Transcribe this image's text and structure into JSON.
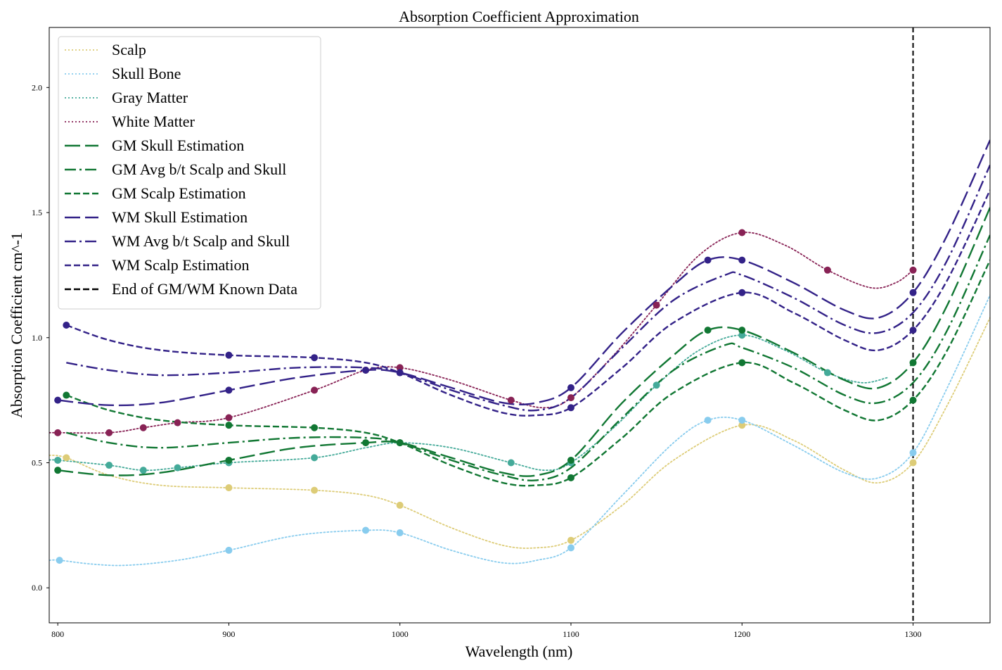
{
  "chart_data": {
    "type": "line",
    "title": "Absorption Coefficient Approximation",
    "xlabel": "Wavelength (nm)",
    "ylabel": "Absorption Coefficient cm^-1",
    "xlim": [
      795,
      1345
    ],
    "ylim": [
      -0.14,
      2.24
    ],
    "x_ticks": [
      800,
      900,
      1000,
      1100,
      1200,
      1300
    ],
    "y_ticks": [
      0.0,
      0.5,
      1.0,
      1.5,
      2.0
    ],
    "x_tick_labels": [
      "800",
      "900",
      "1000",
      "1100",
      "1200",
      "1300"
    ],
    "y_tick_labels": [
      "0.0",
      "0.5",
      "1.0",
      "1.5",
      "2.0"
    ],
    "grid": false,
    "legend_position": "top-left",
    "vline": {
      "x": 1300,
      "label": "End of GM/WM Known Data",
      "color": "#000000"
    },
    "series": [
      {
        "name": "Scalp",
        "color": "#ddcc77",
        "style": "dotted",
        "points": [
          [
            805,
            0.52
          ],
          [
            900,
            0.4
          ],
          [
            950,
            0.39
          ],
          [
            1000,
            0.33
          ],
          [
            1100,
            0.19
          ],
          [
            1200,
            0.65
          ],
          [
            1300,
            0.5
          ]
        ],
        "curve": [
          [
            795,
            0.53
          ],
          [
            805,
            0.52
          ],
          [
            830,
            0.45
          ],
          [
            860,
            0.41
          ],
          [
            900,
            0.4
          ],
          [
            950,
            0.39
          ],
          [
            980,
            0.37
          ],
          [
            1000,
            0.33
          ],
          [
            1030,
            0.24
          ],
          [
            1060,
            0.17
          ],
          [
            1080,
            0.16
          ],
          [
            1100,
            0.19
          ],
          [
            1130,
            0.33
          ],
          [
            1160,
            0.51
          ],
          [
            1200,
            0.65
          ],
          [
            1230,
            0.59
          ],
          [
            1260,
            0.47
          ],
          [
            1280,
            0.42
          ],
          [
            1300,
            0.5
          ],
          [
            1320,
            0.73
          ],
          [
            1345,
            1.08
          ]
        ]
      },
      {
        "name": "Skull Bone",
        "color": "#88ccee",
        "style": "dotted",
        "points": [
          [
            801,
            0.11
          ],
          [
            900,
            0.15
          ],
          [
            980,
            0.23
          ],
          [
            1000,
            0.22
          ],
          [
            1100,
            0.16
          ],
          [
            1180,
            0.67
          ],
          [
            1200,
            0.67
          ],
          [
            1300,
            0.54
          ]
        ],
        "curve": [
          [
            795,
            0.11
          ],
          [
            801,
            0.11
          ],
          [
            820,
            0.095
          ],
          [
            840,
            0.09
          ],
          [
            870,
            0.11
          ],
          [
            900,
            0.15
          ],
          [
            940,
            0.21
          ],
          [
            980,
            0.23
          ],
          [
            1000,
            0.22
          ],
          [
            1030,
            0.15
          ],
          [
            1060,
            0.1
          ],
          [
            1080,
            0.11
          ],
          [
            1100,
            0.16
          ],
          [
            1130,
            0.37
          ],
          [
            1160,
            0.58
          ],
          [
            1180,
            0.67
          ],
          [
            1200,
            0.67
          ],
          [
            1230,
            0.57
          ],
          [
            1260,
            0.46
          ],
          [
            1280,
            0.44
          ],
          [
            1300,
            0.54
          ],
          [
            1320,
            0.8
          ],
          [
            1345,
            1.17
          ]
        ]
      },
      {
        "name": "Gray Matter",
        "color": "#44aa99",
        "style": "dotted",
        "points": [
          [
            800,
            0.51
          ],
          [
            830,
            0.49
          ],
          [
            850,
            0.47
          ],
          [
            870,
            0.48
          ],
          [
            900,
            0.5
          ],
          [
            950,
            0.52
          ],
          [
            1000,
            0.58
          ],
          [
            1065,
            0.5
          ],
          [
            1100,
            0.5
          ],
          [
            1150,
            0.81
          ],
          [
            1200,
            1.01
          ],
          [
            1250,
            0.86
          ]
        ],
        "curve": [
          [
            795,
            0.51
          ],
          [
            800,
            0.51
          ],
          [
            830,
            0.49
          ],
          [
            850,
            0.47
          ],
          [
            870,
            0.48
          ],
          [
            900,
            0.5
          ],
          [
            950,
            0.52
          ],
          [
            980,
            0.56
          ],
          [
            1000,
            0.58
          ],
          [
            1030,
            0.56
          ],
          [
            1065,
            0.5
          ],
          [
            1085,
            0.47
          ],
          [
            1100,
            0.5
          ],
          [
            1125,
            0.64
          ],
          [
            1150,
            0.81
          ],
          [
            1175,
            0.95
          ],
          [
            1200,
            1.01
          ],
          [
            1225,
            0.95
          ],
          [
            1250,
            0.86
          ],
          [
            1270,
            0.82
          ],
          [
            1285,
            0.84
          ]
        ]
      },
      {
        "name": "White Matter",
        "color": "#882255",
        "style": "dotted",
        "points": [
          [
            800,
            0.62
          ],
          [
            830,
            0.62
          ],
          [
            850,
            0.64
          ],
          [
            870,
            0.66
          ],
          [
            900,
            0.68
          ],
          [
            950,
            0.79
          ],
          [
            980,
            0.87
          ],
          [
            1000,
            0.88
          ],
          [
            1065,
            0.75
          ],
          [
            1100,
            0.76
          ],
          [
            1150,
            1.13
          ],
          [
            1200,
            1.42
          ],
          [
            1250,
            1.27
          ],
          [
            1300,
            1.27
          ]
        ],
        "curve": [
          [
            795,
            0.62
          ],
          [
            800,
            0.62
          ],
          [
            830,
            0.62
          ],
          [
            850,
            0.64
          ],
          [
            870,
            0.66
          ],
          [
            900,
            0.68
          ],
          [
            950,
            0.79
          ],
          [
            980,
            0.87
          ],
          [
            1000,
            0.88
          ],
          [
            1030,
            0.83
          ],
          [
            1065,
            0.75
          ],
          [
            1085,
            0.72
          ],
          [
            1100,
            0.76
          ],
          [
            1125,
            0.93
          ],
          [
            1150,
            1.13
          ],
          [
            1175,
            1.33
          ],
          [
            1200,
            1.42
          ],
          [
            1225,
            1.37
          ],
          [
            1250,
            1.27
          ],
          [
            1275,
            1.2
          ],
          [
            1290,
            1.22
          ],
          [
            1300,
            1.27
          ]
        ]
      },
      {
        "name": "GM Skull Estimation",
        "color": "#117733",
        "style": "longdash",
        "points": [
          [
            800,
            0.47
          ],
          [
            900,
            0.51
          ],
          [
            980,
            0.58
          ],
          [
            1000,
            0.58
          ],
          [
            1100,
            0.51
          ],
          [
            1180,
            1.03
          ],
          [
            1200,
            1.03
          ],
          [
            1300,
            0.9
          ]
        ],
        "curve": [
          [
            800,
            0.47
          ],
          [
            830,
            0.45
          ],
          [
            860,
            0.46
          ],
          [
            900,
            0.51
          ],
          [
            940,
            0.56
          ],
          [
            980,
            0.58
          ],
          [
            1000,
            0.58
          ],
          [
            1030,
            0.52
          ],
          [
            1060,
            0.46
          ],
          [
            1080,
            0.45
          ],
          [
            1100,
            0.51
          ],
          [
            1130,
            0.74
          ],
          [
            1160,
            0.93
          ],
          [
            1180,
            1.03
          ],
          [
            1200,
            1.03
          ],
          [
            1230,
            0.94
          ],
          [
            1260,
            0.83
          ],
          [
            1280,
            0.8
          ],
          [
            1300,
            0.9
          ],
          [
            1320,
            1.13
          ],
          [
            1345,
            1.52
          ]
        ]
      },
      {
        "name": "GM Avg b/t Scalp and Skull",
        "color": "#117733",
        "style": "dashdot",
        "points": [],
        "curve": [
          [
            805,
            0.62
          ],
          [
            830,
            0.58
          ],
          [
            860,
            0.56
          ],
          [
            900,
            0.58
          ],
          [
            940,
            0.6
          ],
          [
            980,
            0.6
          ],
          [
            1000,
            0.58
          ],
          [
            1030,
            0.51
          ],
          [
            1060,
            0.45
          ],
          [
            1080,
            0.43
          ],
          [
            1100,
            0.48
          ],
          [
            1130,
            0.68
          ],
          [
            1160,
            0.87
          ],
          [
            1190,
            0.97
          ],
          [
            1200,
            0.96
          ],
          [
            1230,
            0.88
          ],
          [
            1260,
            0.77
          ],
          [
            1280,
            0.74
          ],
          [
            1300,
            0.82
          ],
          [
            1320,
            1.03
          ],
          [
            1345,
            1.41
          ]
        ]
      },
      {
        "name": "GM Scalp Estimation",
        "color": "#117733",
        "style": "dashed",
        "points": [
          [
            805,
            0.77
          ],
          [
            900,
            0.65
          ],
          [
            950,
            0.64
          ],
          [
            1000,
            0.58
          ],
          [
            1100,
            0.44
          ],
          [
            1200,
            0.9
          ],
          [
            1300,
            0.75
          ]
        ],
        "curve": [
          [
            805,
            0.77
          ],
          [
            830,
            0.71
          ],
          [
            860,
            0.67
          ],
          [
            900,
            0.65
          ],
          [
            950,
            0.64
          ],
          [
            980,
            0.62
          ],
          [
            1000,
            0.58
          ],
          [
            1030,
            0.49
          ],
          [
            1060,
            0.42
          ],
          [
            1080,
            0.41
          ],
          [
            1100,
            0.44
          ],
          [
            1130,
            0.6
          ],
          [
            1160,
            0.78
          ],
          [
            1200,
            0.9
          ],
          [
            1230,
            0.82
          ],
          [
            1260,
            0.71
          ],
          [
            1280,
            0.67
          ],
          [
            1300,
            0.75
          ],
          [
            1320,
            0.95
          ],
          [
            1345,
            1.31
          ]
        ]
      },
      {
        "name": "WM Skull Estimation",
        "color": "#332288",
        "style": "longdash",
        "points": [
          [
            800,
            0.75
          ],
          [
            900,
            0.79
          ],
          [
            980,
            0.87
          ],
          [
            1000,
            0.86
          ],
          [
            1100,
            0.8
          ],
          [
            1180,
            1.31
          ],
          [
            1200,
            1.31
          ],
          [
            1300,
            1.18
          ]
        ],
        "curve": [
          [
            800,
            0.75
          ],
          [
            830,
            0.73
          ],
          [
            860,
            0.74
          ],
          [
            900,
            0.79
          ],
          [
            940,
            0.84
          ],
          [
            980,
            0.87
          ],
          [
            1000,
            0.86
          ],
          [
            1030,
            0.8
          ],
          [
            1060,
            0.74
          ],
          [
            1080,
            0.74
          ],
          [
            1100,
            0.8
          ],
          [
            1130,
            1.02
          ],
          [
            1160,
            1.21
          ],
          [
            1180,
            1.31
          ],
          [
            1200,
            1.31
          ],
          [
            1230,
            1.22
          ],
          [
            1260,
            1.11
          ],
          [
            1280,
            1.08
          ],
          [
            1300,
            1.18
          ],
          [
            1320,
            1.41
          ],
          [
            1345,
            1.79
          ]
        ]
      },
      {
        "name": "WM Avg b/t Scalp and Skull",
        "color": "#332288",
        "style": "dashdot",
        "points": [],
        "curve": [
          [
            805,
            0.9
          ],
          [
            830,
            0.87
          ],
          [
            860,
            0.85
          ],
          [
            900,
            0.86
          ],
          [
            940,
            0.88
          ],
          [
            980,
            0.88
          ],
          [
            1000,
            0.86
          ],
          [
            1030,
            0.79
          ],
          [
            1060,
            0.73
          ],
          [
            1080,
            0.71
          ],
          [
            1100,
            0.76
          ],
          [
            1130,
            0.96
          ],
          [
            1160,
            1.15
          ],
          [
            1190,
            1.25
          ],
          [
            1200,
            1.25
          ],
          [
            1230,
            1.16
          ],
          [
            1260,
            1.05
          ],
          [
            1280,
            1.02
          ],
          [
            1300,
            1.1
          ],
          [
            1320,
            1.31
          ],
          [
            1345,
            1.69
          ]
        ]
      },
      {
        "name": "WM Scalp Estimation",
        "color": "#332288",
        "style": "dashed",
        "points": [
          [
            805,
            1.05
          ],
          [
            900,
            0.93
          ],
          [
            950,
            0.92
          ],
          [
            1000,
            0.86
          ],
          [
            1100,
            0.72
          ],
          [
            1200,
            1.18
          ],
          [
            1300,
            1.03
          ]
        ],
        "curve": [
          [
            805,
            1.05
          ],
          [
            830,
            0.99
          ],
          [
            860,
            0.95
          ],
          [
            900,
            0.93
          ],
          [
            950,
            0.92
          ],
          [
            980,
            0.9
          ],
          [
            1000,
            0.86
          ],
          [
            1030,
            0.77
          ],
          [
            1060,
            0.7
          ],
          [
            1080,
            0.69
          ],
          [
            1100,
            0.72
          ],
          [
            1130,
            0.88
          ],
          [
            1160,
            1.06
          ],
          [
            1200,
            1.18
          ],
          [
            1230,
            1.1
          ],
          [
            1260,
            0.99
          ],
          [
            1280,
            0.95
          ],
          [
            1300,
            1.03
          ],
          [
            1320,
            1.23
          ],
          [
            1345,
            1.59
          ]
        ]
      }
    ]
  }
}
